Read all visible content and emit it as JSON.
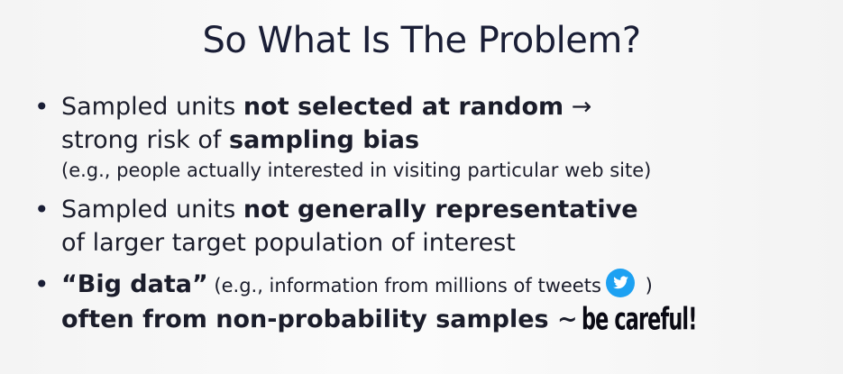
{
  "slide": {
    "title": "So What Is The Problem?",
    "bullets": [
      {
        "line1_pre": "Sampled units ",
        "line1_bold": "not selected at random",
        "line1_arrow": " →",
        "line2_pre": "strong risk of ",
        "line2_bold": "sampling bias",
        "line3": "(e.g., people actually interested in visiting particular web site)"
      },
      {
        "line1_pre": "Sampled units ",
        "line1_bold": "not generally representative",
        "line2": "of larger target population of interest"
      },
      {
        "line1_bold": "“Big data”",
        "line1_small": " (e.g., information from millions of tweets",
        "line1_close": " )",
        "line2_bold": "often from non-probability samples ~",
        "line2_note": "be careful!"
      }
    ]
  },
  "icons": {
    "twitter": "twitter-bird-icon",
    "twitter_color": "#1da1f2"
  }
}
